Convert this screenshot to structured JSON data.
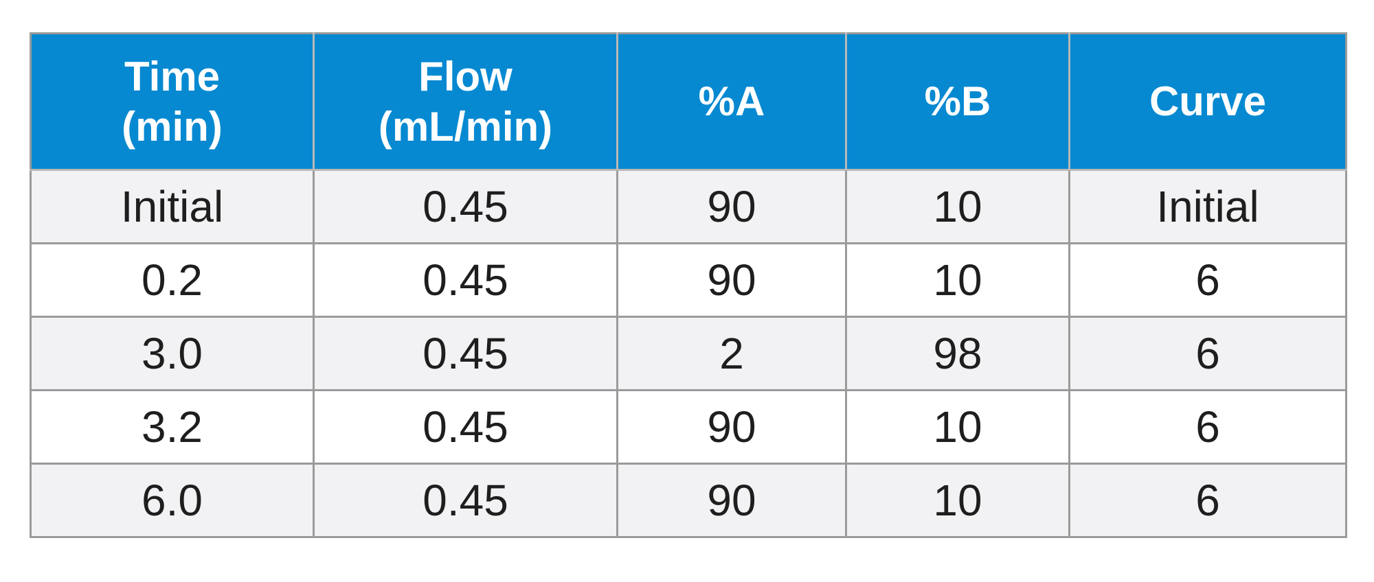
{
  "table": {
    "columns": [
      {
        "line1": "Time",
        "line2": "(min)"
      },
      {
        "line1": "Flow",
        "line2": "(mL/min)"
      },
      {
        "line1": "%A",
        "line2": ""
      },
      {
        "line1": "%B",
        "line2": ""
      },
      {
        "line1": "Curve",
        "line2": ""
      }
    ],
    "rows": [
      [
        "Initial",
        "0.45",
        "90",
        "10",
        "Initial"
      ],
      [
        "0.2",
        "0.45",
        "90",
        "10",
        "6"
      ],
      [
        "3.0",
        "0.45",
        "2",
        "98",
        "6"
      ],
      [
        "3.2",
        "0.45",
        "90",
        "10",
        "6"
      ],
      [
        "6.0",
        "0.45",
        "90",
        "10",
        "6"
      ]
    ],
    "colors": {
      "header_bg": "#0689d1",
      "header_text": "#ffffff",
      "row_alt_bg": "#f2f2f4",
      "row_bg": "#ffffff",
      "grid": "#9a9a9a"
    }
  }
}
